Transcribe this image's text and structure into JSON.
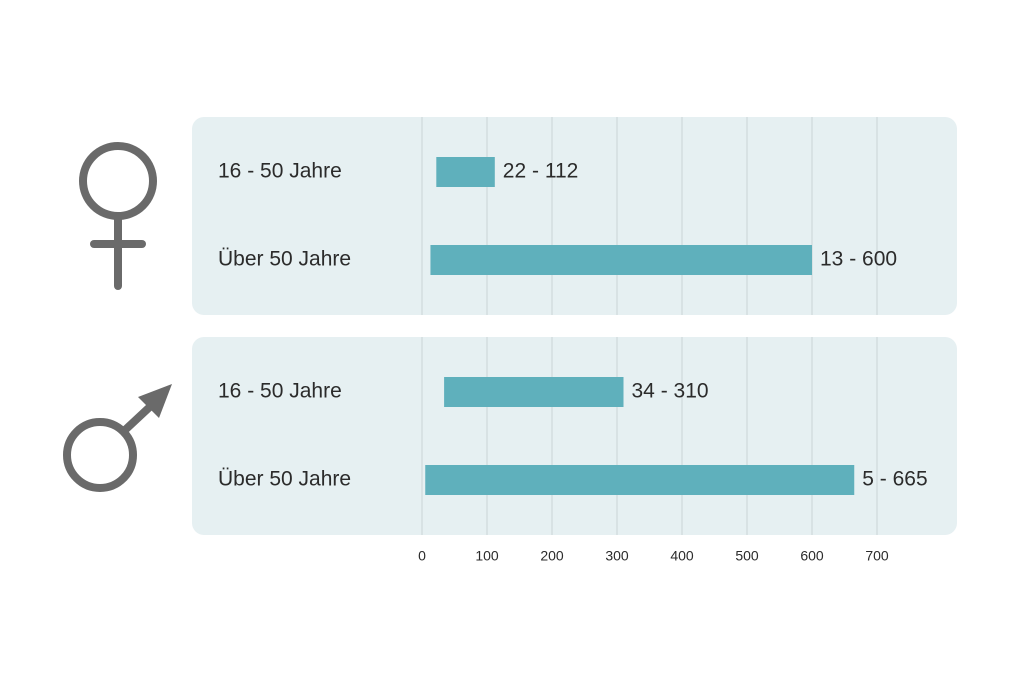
{
  "chart_data": {
    "type": "bar",
    "orientation": "horizontal",
    "subtype": "range",
    "title": "",
    "xlabel": "",
    "ylabel": "",
    "xlim": [
      0,
      700
    ],
    "ticks": [
      0,
      100,
      200,
      300,
      400,
      500,
      600,
      700
    ],
    "grid": true,
    "bar_color": "#5fb0bc",
    "panel_color": "#e6f0f2",
    "grid_color": "#c9d4d7",
    "icon_color": "#6a6a6a",
    "groups": [
      {
        "icon": "female-symbol-icon",
        "rows": [
          {
            "label": "16 - 50 Jahre",
            "min": 22,
            "max": 112,
            "value_label": "22 - 112"
          },
          {
            "label": "Über 50 Jahre",
            "min": 13,
            "max": 600,
            "value_label": "13 - 600"
          }
        ]
      },
      {
        "icon": "male-symbol-icon",
        "rows": [
          {
            "label": "16 - 50 Jahre",
            "min": 34,
            "max": 310,
            "value_label": "34 - 310"
          },
          {
            "label": "Über 50 Jahre",
            "min": 5,
            "max": 665,
            "value_label": "5 - 665"
          }
        ]
      }
    ]
  }
}
